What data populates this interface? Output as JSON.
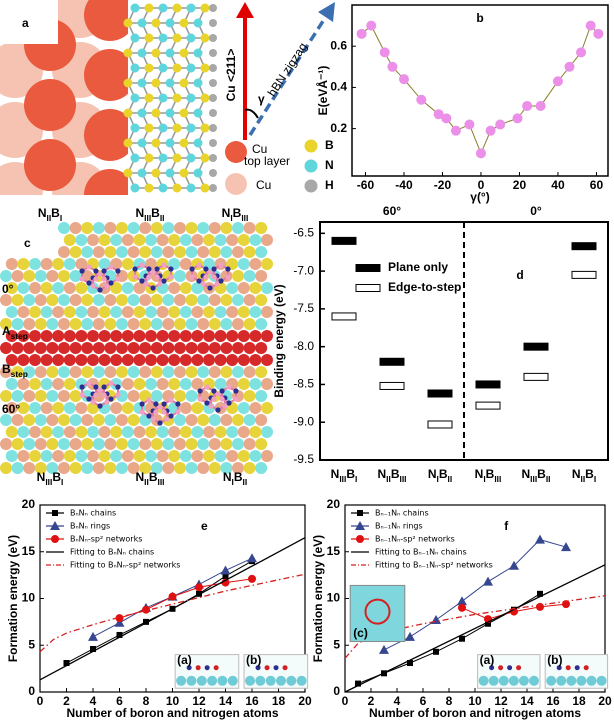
{
  "panel_a": {
    "label": "a",
    "arrow_labels": [
      "Cu <211>",
      "hBN zigzag"
    ],
    "angle": "γ",
    "legend": [
      "Cu",
      "top layer",
      "Cu",
      "B",
      "N",
      "H"
    ]
  },
  "panel_c": {
    "label": "c",
    "top": [
      [
        [
          "N",
          "II"
        ],
        [
          "B",
          "I"
        ]
      ],
      [
        [
          "N",
          "III"
        ],
        [
          "B",
          "II"
        ]
      ],
      [
        [
          "N",
          "I"
        ],
        [
          "B",
          "III"
        ]
      ]
    ],
    "left": [
      "0°",
      [
        [
          "A",
          "step"
        ]
      ],
      [
        [
          "B",
          "step"
        ]
      ],
      "60°"
    ],
    "bottom": [
      [
        [
          "N",
          "III"
        ],
        [
          "B",
          "I"
        ]
      ],
      [
        [
          "N",
          "II"
        ],
        [
          "B",
          "III"
        ]
      ],
      [
        [
          "N",
          "I"
        ],
        [
          "B",
          "II"
        ]
      ]
    ]
  },
  "chart_data": [
    {
      "panel": "b",
      "type": "line",
      "xlabel": "γ(°)",
      "ylabel": "E(eVÅ⁻¹)",
      "x": [
        -62,
        -57,
        -50,
        -46,
        -40,
        -31,
        -22,
        -18,
        -13,
        -6,
        0,
        5,
        10,
        19,
        24,
        31,
        40,
        46,
        52,
        57,
        61
      ],
      "series": [
        {
          "color": "#ec8fe8",
          "line_color": "#8b7d2a",
          "marker": "circle",
          "values": [
            0.66,
            0.7,
            0.57,
            0.5,
            0.44,
            0.34,
            0.27,
            0.25,
            0.19,
            0.22,
            0.08,
            0.19,
            0.22,
            0.25,
            0.31,
            0.31,
            0.43,
            0.5,
            0.57,
            0.7,
            0.66
          ]
        }
      ],
      "xlim": [
        -67,
        66
      ],
      "ylim": [
        -0.03,
        0.8
      ],
      "xticks": [
        -60,
        -40,
        -20,
        0,
        20,
        40,
        60
      ],
      "yticks": [
        0.2,
        0.4,
        0.6
      ]
    },
    {
      "panel": "d",
      "type": "level",
      "ylabel": "Binding energy (eV)",
      "section_labels": [
        "60°",
        "0°"
      ],
      "categories": [
        [
          [
            "N",
            "III"
          ],
          [
            "B",
            "I"
          ]
        ],
        [
          [
            "N",
            "II"
          ],
          [
            "B",
            "III"
          ]
        ],
        [
          [
            "N",
            "I"
          ],
          [
            "B",
            "II"
          ]
        ],
        [
          [
            "N",
            "I"
          ],
          [
            "B",
            "III"
          ]
        ],
        [
          [
            "N",
            "III"
          ],
          [
            "B",
            "II"
          ]
        ],
        [
          [
            "N",
            "II"
          ],
          [
            "B",
            "I"
          ]
        ]
      ],
      "series": [
        {
          "name": "Plane only",
          "color": "#000000",
          "style": "filled",
          "values": [
            -6.6,
            -8.2,
            -8.62,
            -8.5,
            -8.0,
            -6.67
          ]
        },
        {
          "name": "Edge-to-step",
          "color": "#000000",
          "style": "open",
          "values": [
            -7.6,
            -8.52,
            -9.03,
            -8.78,
            -8.4,
            -7.05
          ]
        }
      ],
      "ylim": [
        -9.5,
        -6.35
      ],
      "yticks": [
        -6.5,
        {
          "value": -7,
          "label": "-7.0"
        },
        -7.5,
        {
          "value": -8,
          "label": "-8.0"
        },
        -8.5,
        {
          "value": -9,
          "label": "-9.0"
        },
        -9.5
      ]
    },
    {
      "panel": "e",
      "type": "line",
      "xlabel": "Number of boron and nitrogen atoms",
      "ylabel": "Formation energy (eV)",
      "series": [
        {
          "name": "BₙNₙ chains",
          "color": "#000000",
          "marker": "square",
          "x": [
            2,
            4,
            6,
            8,
            10,
            12,
            14,
            16
          ],
          "values": [
            3.1,
            4.6,
            6.1,
            7.5,
            8.9,
            10.5,
            12.4,
            14.0
          ]
        },
        {
          "name": "BₙNₙ rings",
          "color": "#36468f",
          "marker": "triangle",
          "x": [
            4,
            6,
            8,
            10,
            12,
            14,
            16
          ],
          "values": [
            5.9,
            7.4,
            9.0,
            10.2,
            11.5,
            13.0,
            14.3
          ]
        },
        {
          "name": "BₙNₙ-sp² networks",
          "color": "#e01010",
          "marker": "circle",
          "x": [
            6,
            8,
            10,
            12,
            14,
            16
          ],
          "values": [
            7.9,
            8.8,
            10.2,
            11.2,
            11.7,
            12.1
          ]
        },
        {
          "name": "Fitting to BₙNₙ chains",
          "color": "#000000",
          "marker": "none",
          "x": [
            0,
            20
          ],
          "values": [
            1.3,
            16.5
          ]
        },
        {
          "name": "Fitting to BₙNₙ-sp² networks",
          "color": "#d42020",
          "marker": "none",
          "style": "dash-dot",
          "x": [
            0,
            1,
            2,
            4,
            6,
            8,
            10,
            12,
            14,
            16,
            18,
            20
          ],
          "values": [
            4.3,
            5.6,
            6.3,
            7.2,
            8.0,
            8.7,
            9.4,
            10.1,
            10.8,
            11.4,
            12.0,
            12.6
          ]
        }
      ],
      "xlim": [
        0,
        20
      ],
      "ylim": [
        0,
        20
      ],
      "xticks": [
        0,
        2,
        4,
        6,
        8,
        10,
        12,
        14,
        16,
        18,
        20
      ],
      "yticks": [
        0,
        5,
        10,
        15,
        20
      ],
      "insets": [
        "(a)",
        "(b)"
      ]
    },
    {
      "panel": "f",
      "type": "line",
      "xlabel": "Number of boron and nitrogen atoms",
      "ylabel": "Formation energy (eV)",
      "series": [
        {
          "name": "Bₙ₋₁Nₙ chains",
          "color": "#000000",
          "marker": "square",
          "x": [
            1,
            3,
            5,
            7,
            9,
            11,
            13,
            15
          ],
          "values": [
            0.9,
            2.0,
            3.1,
            4.3,
            5.7,
            7.3,
            8.8,
            10.5
          ]
        },
        {
          "name": "Bₙ₋₁Nₙ rings",
          "color": "#36468f",
          "marker": "triangle",
          "x": [
            3,
            5,
            7,
            9,
            11,
            13,
            15,
            17
          ],
          "values": [
            4.5,
            5.9,
            7.7,
            9.7,
            11.8,
            13.5,
            16.3,
            15.5
          ]
        },
        {
          "name": "Bₙ₋₁Nₙ-sp² networks",
          "color": "#e01010",
          "marker": "circle",
          "x": [
            9,
            11,
            13,
            15,
            17
          ],
          "values": [
            9.0,
            7.8,
            8.6,
            9.1,
            9.4
          ]
        },
        {
          "name": "Fitting to Bₙ₋₁Nₙ chains",
          "color": "#000000",
          "marker": "none",
          "x": [
            0,
            20
          ],
          "values": [
            0,
            13.6
          ]
        },
        {
          "name": "Fitting to Bₙ₋₁Nₙ-sp² networks",
          "color": "#d42020",
          "marker": "none",
          "style": "dash-dot",
          "x": [
            0,
            1,
            2,
            4,
            6,
            8,
            10,
            12,
            14,
            16,
            18,
            20
          ],
          "values": [
            3.6,
            5.2,
            5.9,
            6.7,
            7.3,
            7.8,
            8.3,
            8.7,
            9.1,
            9.5,
            9.9,
            10.3
          ]
        }
      ],
      "xlim": [
        0,
        20
      ],
      "ylim": [
        0,
        20
      ],
      "xticks": [
        0,
        2,
        4,
        6,
        8,
        10,
        12,
        14,
        16,
        18,
        20
      ],
      "yticks": [
        0,
        5,
        10,
        15,
        20
      ],
      "insets": [
        "(a)",
        "(b)",
        "(c)"
      ]
    }
  ]
}
